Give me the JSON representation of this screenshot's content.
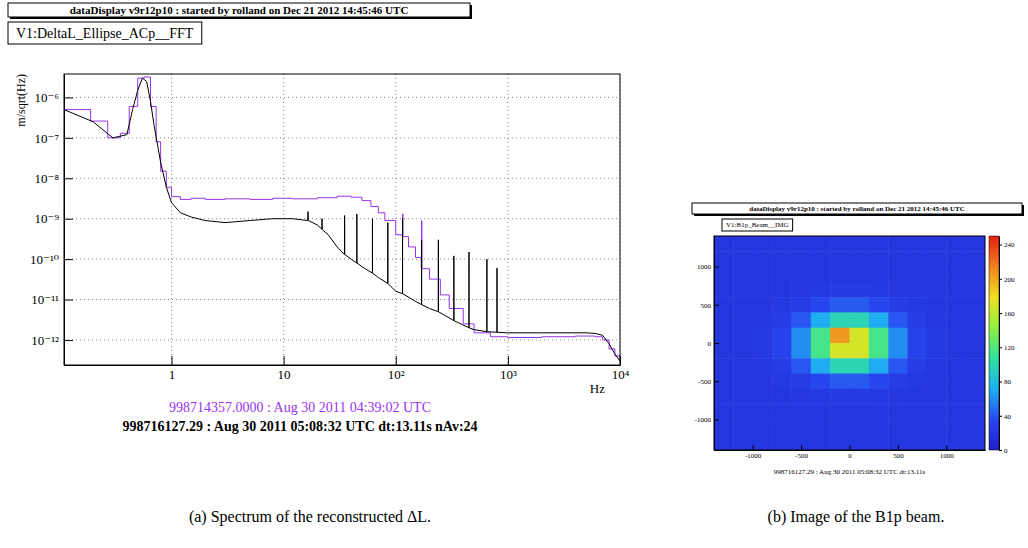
{
  "chart_data": [
    {
      "type": "line",
      "header": "dataDisplay v9r12p10 : started by rolland on Dec 21 2012 14:45:46 UTC",
      "title": "V1:DeltaL_Ellipse_ACp__FFT",
      "x_label": "Hz",
      "y_label": "m/sqrt(Hz)",
      "log": true,
      "grid": true,
      "legend": "bottom",
      "xlim": [
        0.11,
        10000
      ],
      "ylim": [
        2.4e-13,
        3.8e-06
      ],
      "xticks": [
        1,
        10,
        {
          "value": 100,
          "label": "10²"
        },
        {
          "value": 1000,
          "label": "10³"
        },
        {
          "value": 10000,
          "label": "10⁴"
        }
      ],
      "yticks": [
        {
          "value": 1e-12,
          "label": "10⁻¹²"
        },
        {
          "value": 1e-11,
          "label": "10⁻¹¹"
        },
        {
          "value": 1e-10,
          "label": "10⁻¹⁰"
        },
        {
          "value": 1e-09,
          "label": "10⁻⁹"
        },
        {
          "value": 1e-08,
          "label": "10⁻⁸"
        },
        {
          "value": 1e-07,
          "label": "10⁻⁷"
        },
        {
          "value": 1e-06,
          "label": "10⁻⁶"
        }
      ],
      "series": [
        {
          "name": "998714357.0000 : Aug 30 2011 04:39:02 UTC",
          "color": "#9933ee",
          "line_style": "step",
          "x": [
            0.11,
            0.19,
            0.27,
            0.35,
            0.42,
            0.5,
            0.57,
            0.65,
            0.73,
            0.8,
            0.9,
            1.0,
            1.2,
            1.5,
            2,
            3,
            5,
            8,
            12,
            20,
            30,
            40,
            50,
            60,
            70,
            80,
            100,
            114,
            115,
            116,
            130,
            150,
            169,
            170,
            171,
            200,
            250,
            300,
            400,
            500,
            700,
            1000,
            2000,
            4000,
            6000,
            7000,
            8000,
            9000,
            10000
          ],
          "values": [
            5e-07,
            2.6e-07,
            1e-07,
            1.3e-07,
            6e-07,
            3e-06,
            3.2e-06,
            6e-07,
            8e-08,
            1.5e-08,
            6e-09,
            3.5e-09,
            3e-09,
            3.2e-09,
            3e-09,
            3.1e-09,
            3e-09,
            3.2e-09,
            3.1e-09,
            3.3e-09,
            3.6e-09,
            3.4e-09,
            2.8e-09,
            2e-09,
            1.4e-09,
            9e-10,
            4e-10,
            3.8e-10,
            1.3e-09,
            3.6e-10,
            2e-10,
            1.1e-10,
            6e-11,
            9e-10,
            5.8e-11,
            3.2e-11,
            1.3e-11,
            6e-12,
            2.5e-12,
            1.5e-12,
            1.2e-12,
            1.15e-12,
            1.2e-12,
            1.25e-12,
            1.2e-12,
            1e-12,
            6e-13,
            4e-13,
            3e-13
          ]
        },
        {
          "name": "998716127.29 : Aug 30 2011 05:08:32 UTC dt:13.11s nAv:24",
          "color": "#000000",
          "line_style": "solid",
          "x": [
            0.11,
            0.2,
            0.3,
            0.4,
            0.45,
            0.5,
            0.55,
            0.6,
            0.65,
            0.7,
            0.8,
            0.9,
            1.0,
            1.2,
            1.5,
            2,
            3,
            5,
            8,
            12,
            16.4,
            16.5,
            16.6,
            20,
            21.9,
            22,
            22.1,
            25,
            30,
            34.9,
            35,
            35.1,
            40,
            44.9,
            45,
            45.1,
            50,
            61.9,
            62,
            62.1,
            70,
            84.9,
            85,
            85.1,
            100,
            114.9,
            115,
            115.1,
            150,
            169.9,
            170,
            170.1,
            200,
            239.9,
            240,
            240.1,
            300,
            329.9,
            330,
            330.1,
            449.9,
            450,
            450.1,
            500,
            649.9,
            650,
            650.1,
            799.9,
            800,
            800.1,
            1000,
            2000,
            5000,
            6000,
            7000,
            8000,
            9000,
            10000
          ],
          "values": [
            5e-07,
            2.5e-07,
            1e-07,
            1.2e-07,
            5e-07,
            1.5e-06,
            3e-06,
            2.5e-06,
            8e-07,
            2e-07,
            2.5e-08,
            6e-09,
            2.5e-09,
            1.4e-09,
            1.1e-09,
            9e-10,
            8e-10,
            9e-10,
            1e-09,
            1e-09,
            9e-10,
            1.5e-09,
            9e-10,
            7e-10,
            5.5e-10,
            1e-09,
            5.4e-10,
            4e-10,
            2e-10,
            1.3e-10,
            1.2e-09,
            1.3e-10,
            1e-10,
            8e-11,
            1.3e-09,
            8e-11,
            6.5e-11,
            4.5e-11,
            1e-09,
            4.5e-11,
            3.5e-11,
            2.5e-11,
            8e-10,
            2.5e-11,
            1.6e-11,
            1.4e-11,
            1e-09,
            1.4e-11,
            9e-12,
            7.5e-12,
            3e-10,
            7.5e-12,
            6e-12,
            5e-12,
            3e-10,
            5e-12,
            3.5e-12,
            3e-12,
            1.2e-10,
            3e-12,
            2e-12,
            1.5e-10,
            2e-12,
            1.8e-12,
            1.6e-12,
            1e-10,
            1.6e-12,
            1.55e-12,
            6e-11,
            1.55e-12,
            1.5e-12,
            1.5e-12,
            1.5e-12,
            1.45e-12,
            1.3e-12,
            8e-13,
            4.5e-13,
            3e-13
          ]
        }
      ],
      "caption": "(a) Spectrum of the reconstructed ΔL."
    },
    {
      "type": "heatmap",
      "header": "dataDisplay v9r12p10 : started by rolland on Dec 21 2012 14:45:46 UTC",
      "title": "V1:B1p_Beam__IMG",
      "annotations": [
        "998716127.29 : Aug 30 2011 05:08:32 UTC dt:13.11s"
      ],
      "xlim": [
        -1400,
        1400
      ],
      "ylim": [
        -1400,
        1400
      ],
      "xticks": [
        -1000,
        -500,
        0,
        500,
        1000
      ],
      "yticks": [
        -1000,
        -500,
        0,
        500,
        1000
      ],
      "cell_x": [
        -1300,
        -1100,
        -900,
        -700,
        -500,
        -300,
        -100,
        100,
        300,
        500,
        700,
        900,
        1100,
        1300
      ],
      "cell_y": [
        1300,
        1100,
        900,
        700,
        500,
        300,
        100,
        -100,
        -300,
        -500,
        -700,
        -900,
        -1100,
        -1300
      ],
      "cells": [
        [
          20,
          20,
          20,
          20,
          20,
          20,
          20,
          20,
          20,
          20,
          20,
          20,
          20,
          20
        ],
        [
          20,
          20,
          20,
          20,
          20,
          20,
          20,
          20,
          20,
          20,
          20,
          20,
          20,
          20
        ],
        [
          20,
          20,
          20,
          20,
          20,
          20,
          20,
          20,
          20,
          20,
          20,
          20,
          20,
          20
        ],
        [
          20,
          20,
          20,
          20,
          21,
          22,
          23,
          23,
          22,
          21,
          20,
          20,
          20,
          20
        ],
        [
          20,
          20,
          20,
          22,
          26,
          34,
          42,
          42,
          34,
          26,
          22,
          20,
          20,
          20
        ],
        [
          20,
          20,
          21,
          25,
          41,
          70,
          98,
          98,
          70,
          41,
          25,
          21,
          20,
          20
        ],
        [
          20,
          20,
          22,
          30,
          59,
          115,
          205,
          168,
          115,
          59,
          30,
          22,
          20,
          20
        ],
        [
          20,
          20,
          22,
          30,
          59,
          115,
          168,
          168,
          115,
          59,
          30,
          22,
          20,
          20
        ],
        [
          20,
          20,
          21,
          25,
          41,
          70,
          98,
          98,
          70,
          41,
          25,
          21,
          20,
          20
        ],
        [
          20,
          20,
          20,
          22,
          26,
          34,
          42,
          42,
          34,
          26,
          22,
          20,
          20,
          20
        ],
        [
          20,
          20,
          20,
          20,
          21,
          22,
          23,
          23,
          22,
          21,
          20,
          20,
          20,
          20
        ],
        [
          20,
          20,
          20,
          20,
          20,
          20,
          20,
          20,
          20,
          20,
          20,
          20,
          20,
          20
        ],
        [
          20,
          20,
          20,
          20,
          20,
          20,
          20,
          20,
          20,
          20,
          20,
          20,
          20,
          20
        ],
        [
          20,
          20,
          20,
          20,
          20,
          20,
          20,
          20,
          20,
          20,
          20,
          20,
          20,
          20
        ]
      ],
      "color_range": [
        0,
        250
      ],
      "color_ticks": [
        0,
        40,
        80,
        120,
        160,
        200,
        240
      ],
      "caption": "(b) Image of the B1p beam."
    }
  ]
}
